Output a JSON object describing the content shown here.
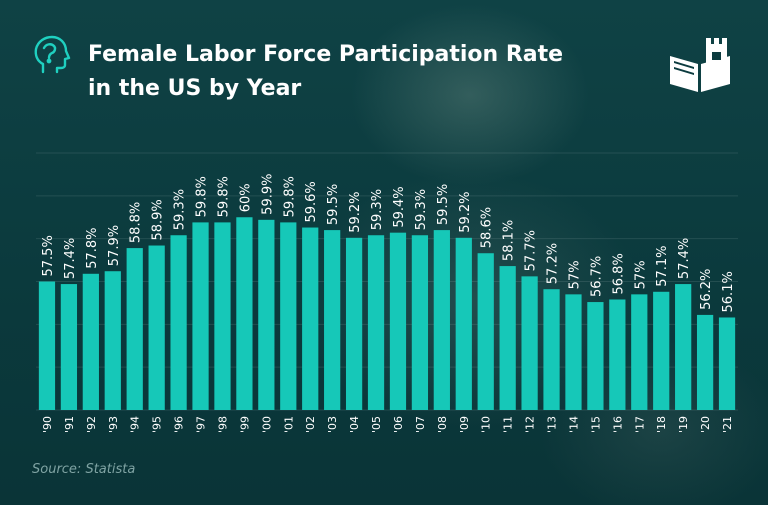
{
  "title_line1": "Female Labor Force Participation Rate",
  "title_line2": "in the US by Year",
  "source": "Source: Statista",
  "colors": {
    "bar": "#16c8b8",
    "label": "#ffffff",
    "accent_icon": "#1fd0c0",
    "background": "#0c3b3f"
  },
  "icons": {
    "head": "head-profile-icon",
    "brand": "book-castle-icon"
  },
  "chart_data": {
    "type": "bar",
    "title": "Female Labor Force Participation Rate in the US by Year",
    "categories": [
      "'90",
      "'91",
      "'92",
      "'93",
      "'94",
      "'95",
      "'96",
      "'97",
      "'98",
      "'99",
      "'00",
      "'01",
      "'02",
      "'03",
      "'04",
      "'05",
      "'06",
      "'07",
      "'08",
      "'09",
      "'10",
      "'11",
      "'12",
      "'13",
      "'14",
      "'15",
      "'16",
      "'17",
      "'18",
      "'19",
      "'20",
      "'21"
    ],
    "values": [
      57.5,
      57.4,
      57.8,
      57.9,
      58.8,
      58.9,
      59.3,
      59.8,
      59.8,
      60,
      59.9,
      59.8,
      59.6,
      59.5,
      59.2,
      59.3,
      59.4,
      59.3,
      59.5,
      59.2,
      58.6,
      58.1,
      57.7,
      57.2,
      57,
      56.7,
      56.8,
      57,
      57.1,
      57.4,
      56.2,
      56.1
    ],
    "labels": [
      "57.5%",
      "57.4%",
      "57.8%",
      "57.9%",
      "58.8%",
      "58.9%",
      "59.3%",
      "59.8%",
      "59.8%",
      "60%",
      "59.9%",
      "59.8%",
      "59.6%",
      "59.5%",
      "59.2%",
      "59.3%",
      "59.4%",
      "59.3%",
      "59.5%",
      "59.2%",
      "58.6%",
      "58.1%",
      "57.7%",
      "57.2%",
      "57%",
      "56.7%",
      "56.8%",
      "57%",
      "57.1%",
      "57.4%",
      "56.2%",
      "56.1%"
    ],
    "xlabel": "",
    "ylabel": "",
    "ylim": [
      52.5,
      62.5
    ],
    "grid": true,
    "legend": "none"
  }
}
